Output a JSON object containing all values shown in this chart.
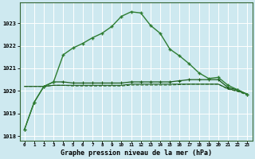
{
  "title": "Graphe pression niveau de la mer (hPa)",
  "bg_color": "#cee9f0",
  "grid_color": "#b8d8e0",
  "line_color_dark": "#1a5c1a",
  "line_color_light": "#2e7d32",
  "ylim": [
    1017.8,
    1023.9
  ],
  "yticks": [
    1018,
    1019,
    1020,
    1021,
    1022,
    1023
  ],
  "series_peaked": [
    1018.3,
    1019.5,
    1020.2,
    1020.4,
    1021.6,
    1021.9,
    1022.1,
    1022.35,
    1022.55,
    1022.85,
    1023.3,
    1023.5,
    1023.45,
    1022.9,
    1022.55,
    1021.85,
    1021.55,
    1021.2,
    1020.8,
    1020.55,
    1020.6,
    1020.25,
    1020.05,
    1019.85
  ],
  "series_flat1": [
    1018.3,
    1019.5,
    1020.2,
    1020.4,
    1020.4,
    1020.35,
    1020.35,
    1020.35,
    1020.35,
    1020.35,
    1020.35,
    1020.4,
    1020.4,
    1020.4,
    1020.4,
    1020.4,
    1020.45,
    1020.5,
    1020.5,
    1020.5,
    1020.5,
    1020.15,
    1020.05,
    1019.85
  ],
  "series_flat2": [
    1020.2,
    1020.2,
    1020.2,
    1020.25,
    1020.25,
    1020.25,
    1020.25,
    1020.25,
    1020.25,
    1020.25,
    1020.25,
    1020.3,
    1020.3,
    1020.3,
    1020.3,
    1020.3,
    1020.3,
    1020.3,
    1020.3,
    1020.3,
    1020.3,
    1020.1,
    1020.0,
    1019.85
  ],
  "series_flat3": [
    1020.2,
    1020.2,
    1020.2,
    1020.25,
    1020.25,
    1020.22,
    1020.22,
    1020.22,
    1020.22,
    1020.22,
    1020.22,
    1020.26,
    1020.26,
    1020.26,
    1020.26,
    1020.26,
    1020.28,
    1020.3,
    1020.3,
    1020.3,
    1020.3,
    1020.08,
    1019.98,
    1019.82
  ]
}
